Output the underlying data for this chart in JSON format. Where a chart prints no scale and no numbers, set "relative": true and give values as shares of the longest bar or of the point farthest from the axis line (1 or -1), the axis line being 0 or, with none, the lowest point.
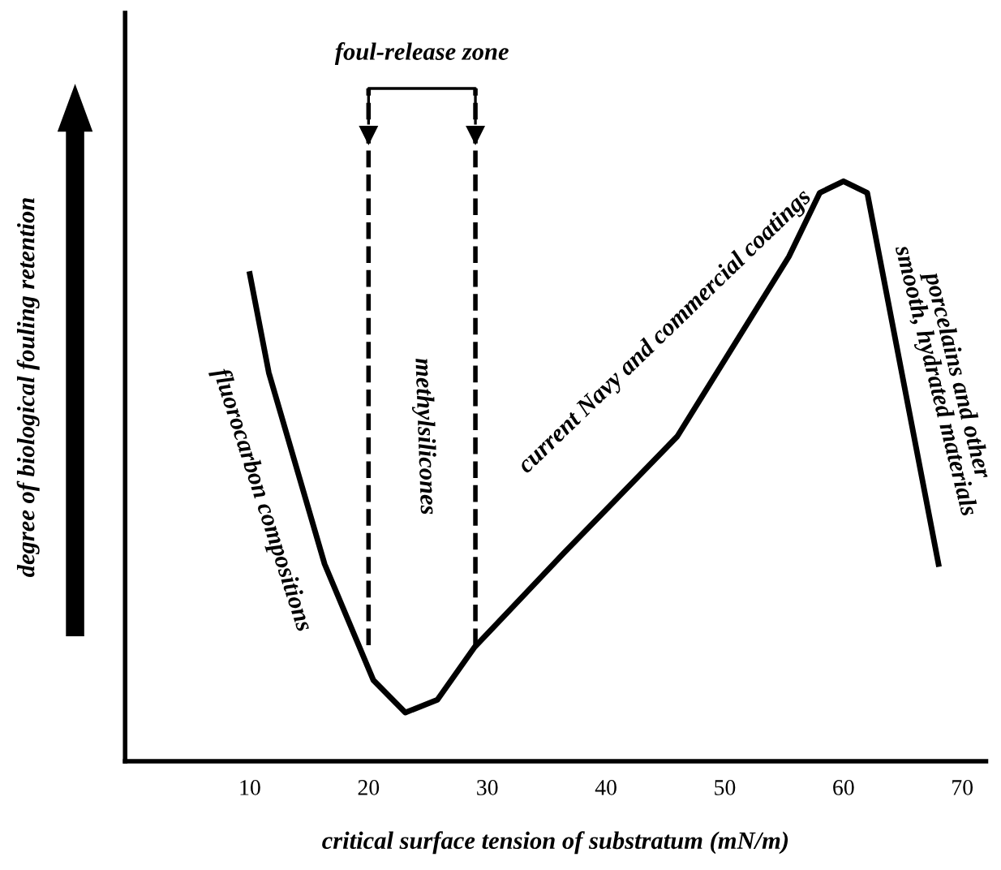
{
  "chart_data": {
    "type": "line",
    "relative": true,
    "xlabel": "critical surface tension of substratum (mN/m)",
    "ylabel": "degree of biological fouling retention",
    "x": [
      10,
      11.6,
      16.3,
      20.4,
      23.1,
      25.8,
      28.9,
      36.5,
      46,
      55.4,
      58,
      60,
      62,
      68
    ],
    "series": [
      {
        "color": "#000000",
        "values": [
          0.84,
          0.67,
          0.34,
          0.14,
          0.084,
          0.106,
          0.196,
          0.36,
          0.56,
          0.87,
          0.98,
          1,
          0.98,
          0.34
        ]
      }
    ],
    "xlim": [
      -0.5,
      72
    ],
    "xticks": [
      10,
      20,
      30,
      40,
      50,
      60,
      70
    ],
    "grid": false,
    "marker": "none",
    "line_style": "solid",
    "ref_lines": [
      {
        "axis": "x",
        "value": 20,
        "line_style": "dashed",
        "color": "#000000"
      },
      {
        "axis": "x",
        "value": 29,
        "line_style": "dashed",
        "color": "#000000"
      }
    ],
    "annotations": [
      "foul-release zone",
      "fluorocarbon compositions",
      "methylsilicones",
      "current Navy and commercial coatings",
      "porcelains and other\nsmooth, hydrated materials"
    ]
  }
}
